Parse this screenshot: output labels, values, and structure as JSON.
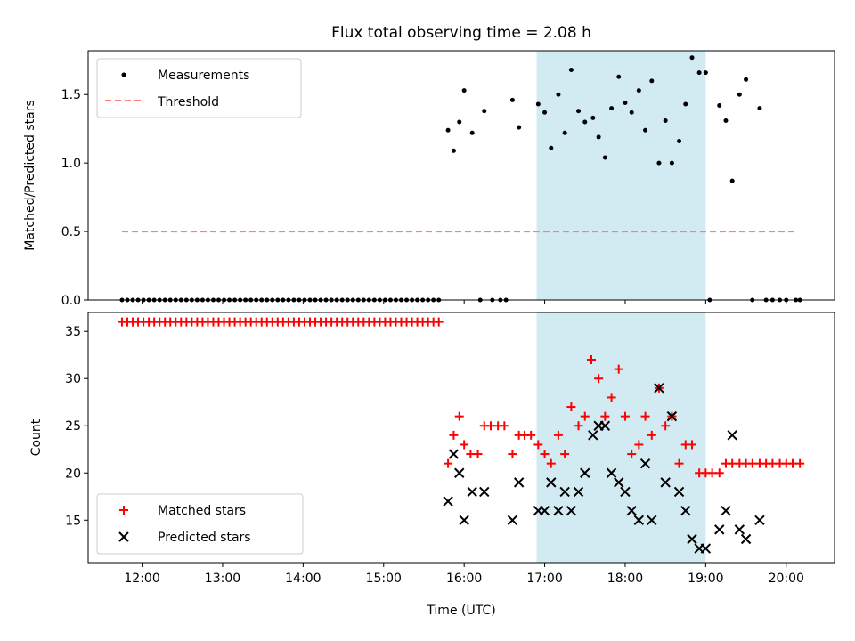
{
  "chart_data": [
    {
      "type": "scatter",
      "title": "Flux total observing time = 2.08 h",
      "xlabel": "",
      "ylabel": "Matched/Predicted stars",
      "xlim": [
        11.33,
        20.6
      ],
      "ylim": [
        0.0,
        1.82
      ],
      "yticks": [
        0.0,
        0.5,
        1.0,
        1.5
      ],
      "ytick_labels": [
        "0.0",
        "0.5",
        "1.0",
        "1.5"
      ],
      "xticks": [
        12,
        13,
        14,
        15,
        16,
        17,
        18,
        19,
        20
      ],
      "shaded_span": {
        "x0": 16.9,
        "x1": 19.0,
        "color": "#add8e6"
      },
      "legend": {
        "position": "upper-left",
        "entries": [
          {
            "label": "Measurements"
          },
          {
            "label": "Threshold"
          }
        ]
      },
      "series": [
        {
          "name": "Measurements",
          "marker": "dot",
          "color": "#000000",
          "x": [
            15.8,
            15.87,
            15.94,
            16.0,
            16.1,
            16.25,
            16.6,
            16.68,
            16.92,
            17.0,
            17.08,
            17.17,
            17.25,
            17.33,
            17.42,
            17.5,
            17.6,
            17.67,
            17.75,
            17.83,
            17.92,
            18.0,
            18.08,
            18.17,
            18.25,
            18.33,
            18.42,
            18.5,
            18.58,
            18.67,
            18.75,
            18.83,
            18.92,
            19.0,
            19.17,
            19.25,
            19.33,
            19.42,
            19.5,
            19.67
          ],
          "y": [
            1.24,
            1.09,
            1.3,
            1.53,
            1.22,
            1.38,
            1.46,
            1.26,
            1.43,
            1.37,
            1.11,
            1.5,
            1.22,
            1.68,
            1.38,
            1.3,
            1.33,
            1.19,
            1.04,
            1.4,
            1.63,
            1.44,
            1.37,
            1.53,
            1.24,
            1.6,
            1.0,
            1.31,
            1.0,
            1.16,
            1.43,
            1.77,
            1.66,
            1.66,
            1.42,
            1.31,
            0.87,
            1.5,
            1.61,
            1.4
          ]
        },
        {
          "name": "",
          "marker": "dot",
          "color": "#000000",
          "x_from": 11.75,
          "x_to": 15.7,
          "x_step": 0.0667,
          "x_extra": [
            16.2,
            16.35,
            16.45,
            16.52,
            19.05,
            19.58,
            19.75,
            19.83,
            19.92,
            20.0,
            20.12,
            20.17
          ],
          "y_value": 0.0
        },
        {
          "name": "Threshold",
          "style": "dashed",
          "color": "#ff7f7f",
          "x": [
            11.75,
            20.12
          ],
          "y": [
            0.5,
            0.5
          ]
        }
      ]
    },
    {
      "type": "scatter",
      "title": "",
      "xlabel": "Time (UTC)",
      "ylabel": "Count",
      "xlim": [
        11.33,
        20.6
      ],
      "ylim": [
        10.5,
        37.0
      ],
      "yticks": [
        15,
        20,
        25,
        30,
        35
      ],
      "ytick_labels": [
        "15",
        "20",
        "25",
        "30",
        "35"
      ],
      "xticks": [
        12,
        13,
        14,
        15,
        16,
        17,
        18,
        19,
        20
      ],
      "xtick_labels": [
        "12:00",
        "13:00",
        "14:00",
        "15:00",
        "16:00",
        "17:00",
        "18:00",
        "19:00",
        "20:00"
      ],
      "shaded_span": {
        "x0": 16.9,
        "x1": 19.0,
        "color": "#add8e6"
      },
      "legend": {
        "position": "lower-left",
        "entries": [
          {
            "label": "Matched stars"
          },
          {
            "label": "Predicted stars"
          }
        ]
      },
      "series": [
        {
          "name": "Matched stars",
          "marker": "plus",
          "color": "#ff0000",
          "x": [
            15.8,
            15.87,
            15.94,
            16.0,
            16.08,
            16.17,
            16.25,
            16.33,
            16.42,
            16.5,
            16.6,
            16.68,
            16.75,
            16.83,
            16.92,
            17.0,
            17.08,
            17.17,
            17.25,
            17.33,
            17.42,
            17.5,
            17.58,
            17.67,
            17.75,
            17.83,
            17.92,
            18.0,
            18.08,
            18.17,
            18.25,
            18.33,
            18.42,
            18.5,
            18.58,
            18.67,
            18.75,
            18.83,
            18.92,
            19.0,
            19.08,
            19.17,
            19.25,
            19.33,
            19.42,
            19.5,
            19.58,
            19.67,
            19.75,
            19.83,
            19.92,
            20.0,
            20.08,
            20.17
          ],
          "y": [
            21,
            24,
            26,
            23,
            22,
            22,
            25,
            25,
            25,
            25,
            22,
            24,
            24,
            24,
            23,
            22,
            21,
            24,
            22,
            27,
            25,
            26,
            32,
            30,
            26,
            28,
            31,
            26,
            22,
            23,
            26,
            24,
            29,
            25,
            26,
            21,
            23,
            23,
            20,
            20,
            20,
            20,
            21,
            21,
            21,
            21,
            21,
            21,
            21,
            21,
            21,
            21,
            21,
            21
          ]
        },
        {
          "name": "",
          "marker": "plus",
          "color": "#ff0000",
          "x_from": 11.75,
          "x_to": 15.7,
          "x_step": 0.0667,
          "y_value": 36
        },
        {
          "name": "Predicted stars",
          "marker": "x",
          "color": "#000000",
          "x": [
            15.8,
            15.87,
            15.94,
            16.0,
            16.1,
            16.25,
            16.6,
            16.68,
            16.92,
            17.0,
            17.08,
            17.17,
            17.25,
            17.33,
            17.42,
            17.5,
            17.6,
            17.67,
            17.75,
            17.83,
            17.92,
            18.0,
            18.08,
            18.17,
            18.25,
            18.33,
            18.42,
            18.5,
            18.58,
            18.67,
            18.75,
            18.83,
            18.92,
            19.0,
            19.17,
            19.25,
            19.33,
            19.42,
            19.5,
            19.67
          ],
          "y": [
            17,
            22,
            20,
            15,
            18,
            18,
            15,
            19,
            16,
            16,
            19,
            16,
            18,
            16,
            18,
            20,
            24,
            25,
            25,
            20,
            19,
            18,
            16,
            15,
            21,
            15,
            29,
            19,
            26,
            18,
            16,
            13,
            12,
            12,
            14,
            16,
            24,
            14,
            13,
            15
          ]
        }
      ]
    }
  ]
}
